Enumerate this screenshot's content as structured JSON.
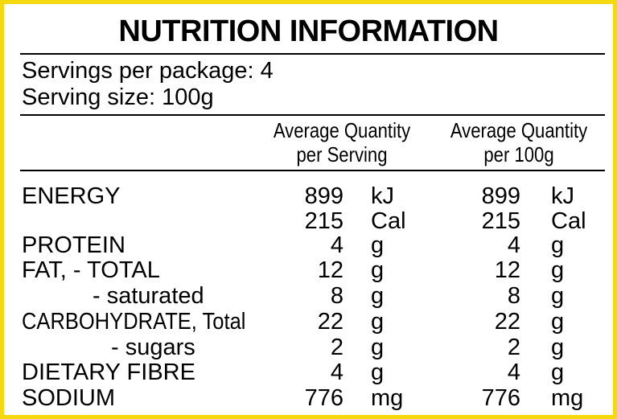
{
  "title": "NUTRITION INFORMATION",
  "servings_per_package": "Servings per package: 4",
  "serving_size": "Serving size: 100g",
  "columns": {
    "per_serving_line1": "Average Quantity",
    "per_serving_line2": "per Serving",
    "per_100g_line1": "Average Quantity",
    "per_100g_line2": "per 100g"
  },
  "rows": [
    {
      "label": "ENERGY",
      "q1": "899",
      "u1": "kJ",
      "q2": "899",
      "u2": "kJ"
    },
    {
      "label": "",
      "q1": "215",
      "u1": "Cal",
      "q2": "215",
      "u2": "Cal"
    },
    {
      "label": "PROTEIN",
      "q1": "4",
      "u1": "g",
      "q2": "4",
      "u2": "g"
    },
    {
      "label": "FAT, - TOTAL",
      "q1": "12",
      "u1": "g",
      "q2": "12",
      "u2": "g"
    },
    {
      "label": "- saturated",
      "q1": "8",
      "u1": "g",
      "q2": "8",
      "u2": "g"
    },
    {
      "label": "CARBOHYDRATE, Total",
      "q1": "22",
      "u1": "g",
      "q2": "22",
      "u2": "g"
    },
    {
      "label": "- sugars",
      "q1": "2",
      "u1": "g",
      "q2": "2",
      "u2": "g"
    },
    {
      "label": "DIETARY FIBRE",
      "q1": "4",
      "u1": "g",
      "q2": "4",
      "u2": "g"
    },
    {
      "label": "SODIUM",
      "q1": "776",
      "u1": "mg",
      "q2": "776",
      "u2": "mg"
    }
  ],
  "colors": {
    "border": "#f5d90f",
    "text": "#000000",
    "background": "#ffffff"
  }
}
